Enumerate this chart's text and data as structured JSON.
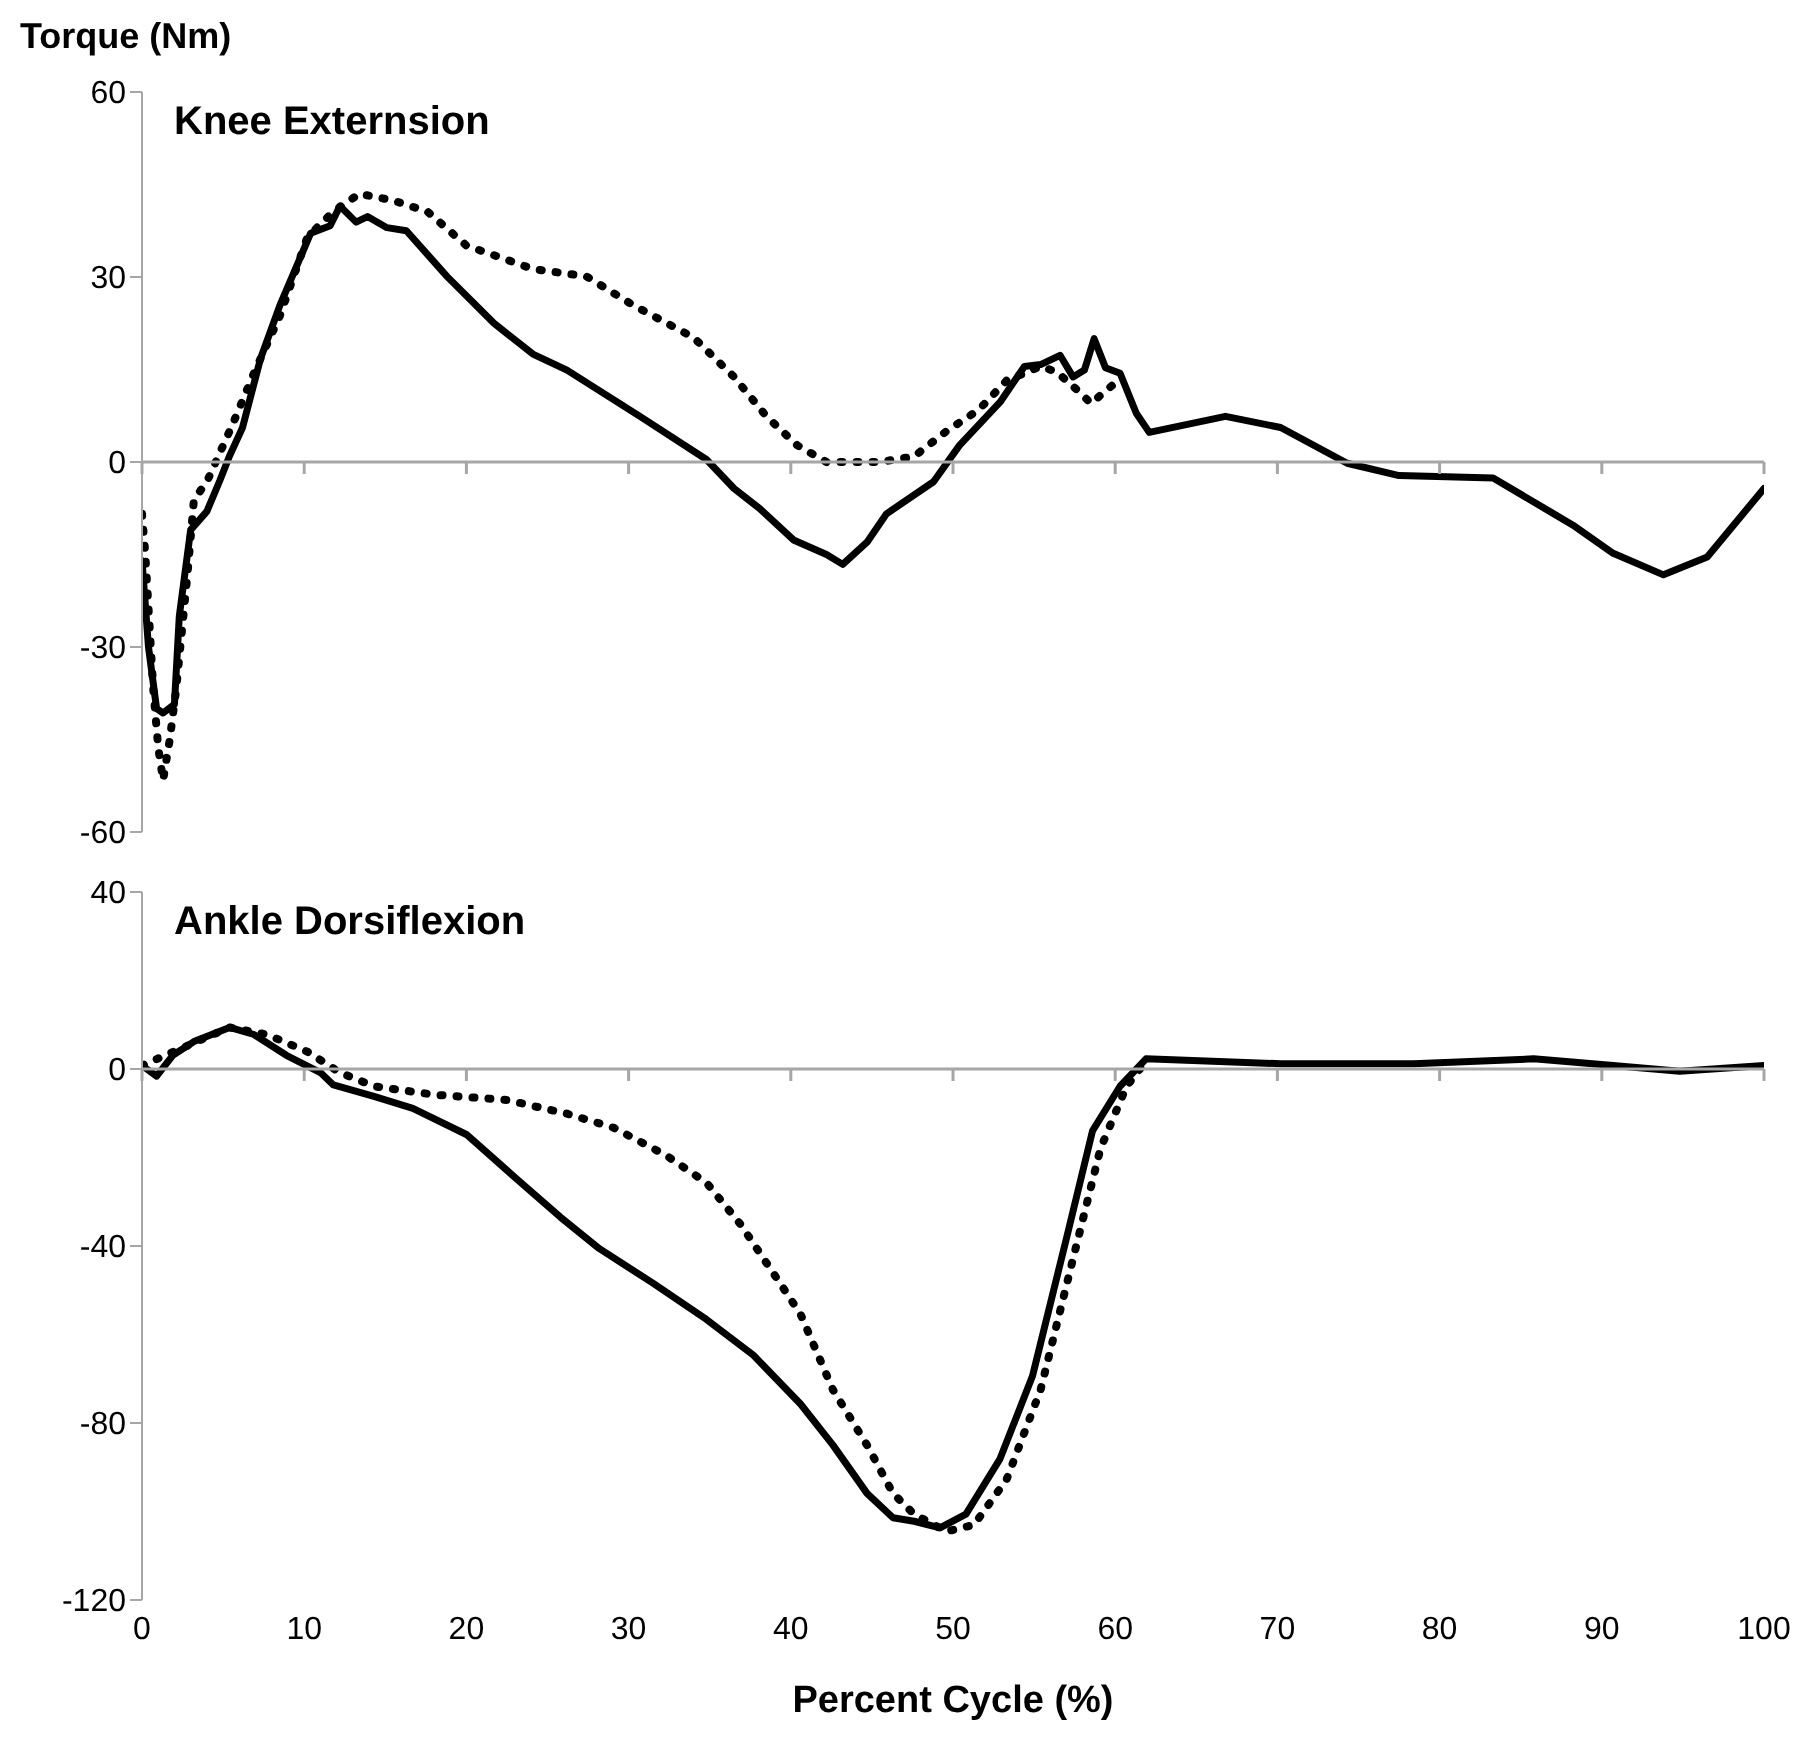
{
  "chart_data": [
    {
      "type": "line",
      "title": "Knee Externsion",
      "ylabel": "Torque (Nm)",
      "xlim": [
        0,
        100
      ],
      "xticks": [
        0,
        10,
        20,
        30,
        40,
        50,
        60,
        70,
        80,
        90,
        100
      ],
      "ylim": [
        -60,
        60
      ],
      "yticks": [
        -60,
        -30,
        0,
        30,
        60
      ],
      "tick_labels": "y",
      "series": [
        {
          "color": "#000000",
          "line_style": "solid",
          "x": [
            0,
            0.4,
            0.9,
            1.3,
            2.0,
            2.3,
            3.0,
            4.0,
            4.8,
            5.4,
            6.2,
            7.3,
            8.5,
            10.4,
            11.6,
            12.2,
            13.2,
            13.9,
            15.1,
            16.3,
            18.8,
            21.7,
            24.1,
            26.2,
            30.7,
            34.8,
            36.5,
            38.1,
            40.2,
            42.2,
            43.2,
            44.7,
            45.9,
            48.8,
            50.4,
            52.9,
            54.4,
            55.4,
            56.6,
            57.4,
            58.1,
            58.7,
            59.4,
            60.3,
            61.3,
            62.1,
            66.8,
            70.2,
            74.3,
            77.5,
            83.3,
            88.2,
            90.7,
            93.8,
            96.5,
            100
          ],
          "values": [
            -16,
            -30,
            -40,
            -40.7,
            -39.3,
            -25,
            -11,
            -8,
            -3,
            1,
            5.6,
            16.7,
            25.4,
            37.1,
            38.3,
            41.5,
            38.9,
            39.8,
            38,
            37.5,
            30.1,
            22.5,
            17.5,
            14.9,
            7.4,
            0.4,
            -4.3,
            -7.6,
            -12.7,
            -15,
            -16.6,
            -13,
            -8.4,
            -3.2,
            2.7,
            9.7,
            15.5,
            15.8,
            17.3,
            13.8,
            14.9,
            20,
            15.3,
            14.4,
            7.9,
            4.8,
            7.4,
            5.6,
            -0.2,
            -2.2,
            -2.6,
            -10.2,
            -14.8,
            -18.3,
            -15.4,
            -4.3
          ]
        },
        {
          "color": "#000000",
          "line_style": "dotted",
          "x": [
            0,
            0.2,
            0.7,
            1.0,
            1.3,
            1.7,
            2.1,
            2.8,
            3.2,
            4.0,
            5.6,
            6.9,
            8.5,
            10.2,
            11.8,
            13.4,
            15.5,
            17.6,
            20.0,
            24.1,
            27.4,
            30.3,
            34.0,
            36.5,
            38.5,
            40.4,
            42.2,
            45.5,
            47.6,
            49.6,
            51.6,
            53.3,
            55.4,
            56.4,
            57.9,
            58.5,
            59.9
          ],
          "values": [
            -8.4,
            -14.8,
            -37,
            -46.3,
            -51.6,
            -45.2,
            -37,
            -18.3,
            -6.1,
            -3.2,
            6.2,
            14.4,
            23.7,
            36.5,
            40.6,
            43.5,
            42.4,
            40.6,
            35.1,
            31.3,
            30.1,
            25.4,
            20.2,
            13.8,
            7.4,
            2.7,
            0,
            0,
            0.9,
            5,
            8.5,
            13.2,
            15.5,
            14.6,
            11.1,
            9.5,
            12.6
          ]
        }
      ]
    },
    {
      "type": "line",
      "title": "Ankle Dorsiflexion",
      "xlabel": "Percent Cycle (%)",
      "xlim": [
        0,
        100
      ],
      "xticks": [
        0,
        10,
        20,
        30,
        40,
        50,
        60,
        70,
        80,
        90,
        100
      ],
      "ylim": [
        -120,
        40
      ],
      "yticks": [
        -120,
        -80,
        -40,
        0,
        40
      ],
      "series": [
        {
          "color": "#000000",
          "line_style": "solid",
          "x": [
            0,
            0.9,
            1.9,
            3.2,
            5.4,
            6.9,
            8.9,
            11.0,
            11.8,
            14.3,
            16.7,
            20.0,
            22.9,
            25.8,
            28.2,
            31.5,
            34.8,
            37.7,
            40.6,
            42.6,
            44.7,
            46.3,
            47.6,
            49.2,
            50.8,
            52.9,
            54.9,
            57.0,
            58.6,
            60.3,
            61.9,
            70.2,
            78.4,
            85.8,
            90.7,
            94.8,
            100
          ],
          "values": [
            0.8,
            -1.6,
            3.1,
            6.2,
            9.4,
            7.8,
            3.1,
            -0.8,
            -3.6,
            -6.2,
            -8.9,
            -14.8,
            -24.2,
            -33.5,
            -40.6,
            -48.4,
            -56.6,
            -64.7,
            -75.7,
            -85,
            -95.9,
            -101.4,
            -102.2,
            -103.7,
            -100.6,
            -88.1,
            -69.4,
            -38.2,
            -14,
            -3.9,
            2.3,
            1.2,
            1.2,
            2.3,
            0.8,
            -0.5,
            0.8
          ]
        },
        {
          "color": "#000000",
          "line_style": "dotted",
          "x": [
            0,
            5.4,
            7.7,
            10.2,
            12.2,
            14.3,
            18.0,
            22.5,
            26.2,
            29.1,
            32.3,
            34.8,
            36.9,
            38.9,
            40.6,
            42.6,
            44.7,
            46.3,
            47.6,
            49.6,
            51.3,
            53.3,
            55.4,
            57.4,
            59.1,
            60.7,
            61.7
          ],
          "values": [
            0.8,
            9.4,
            7.8,
            3.9,
            -0.8,
            -3.9,
            -5.8,
            -7.0,
            -10.1,
            -13.3,
            -19.5,
            -25.7,
            -35.1,
            -46,
            -55.4,
            -72.5,
            -85,
            -95.9,
            -100.6,
            -104.5,
            -103,
            -92.8,
            -72.5,
            -42.9,
            -17.9,
            -3.9,
            0.8
          ]
        }
      ]
    }
  ]
}
